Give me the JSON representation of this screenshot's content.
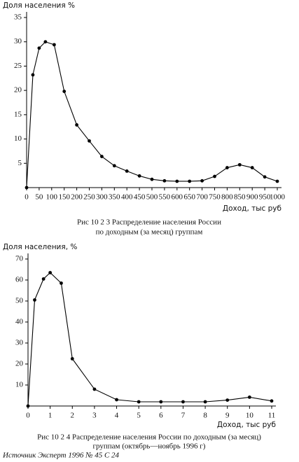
{
  "chart_data": [
    {
      "type": "line",
      "y_label": "Доля населения  %",
      "x_label": "Доход, тыс руб",
      "caption": [
        "Рис  10 2 3  Распределение населения России",
        "по доходным (за месяц) группам"
      ],
      "x": [
        0,
        25,
        50,
        75,
        110,
        150,
        200,
        250,
        300,
        350,
        400,
        450,
        500,
        550,
        600,
        650,
        700,
        750,
        800,
        850,
        900,
        950,
        1000
      ],
      "values": [
        0,
        23.2,
        28.7,
        30,
        29.4,
        19.8,
        12.9,
        9.6,
        6.4,
        4.5,
        3.4,
        2.4,
        1.7,
        1.4,
        1.3,
        1.3,
        1.4,
        2.3,
        4.1,
        4.7,
        4.1,
        2.2,
        1.3
      ],
      "color": "#000000",
      "xlim": [
        0,
        1000
      ],
      "ylim": [
        0,
        35
      ],
      "xticks": [
        0,
        50,
        100,
        150,
        200,
        250,
        300,
        350,
        400,
        450,
        500,
        550,
        600,
        650,
        700,
        750,
        800,
        850,
        900,
        950,
        1000
      ],
      "yticks": [
        5,
        10,
        15,
        20,
        25,
        30,
        35
      ]
    },
    {
      "type": "line",
      "y_label": "Доля населения, %",
      "x_label": "Доход, тыс руб",
      "caption": [
        "Рис  10 2 4  Распределение населения России по доходным (за месяц)",
        "группам (октябрь—ноябрь 1996 г)"
      ],
      "x": [
        0,
        0.3,
        0.7,
        1,
        1.5,
        2,
        3,
        4,
        5,
        6,
        7,
        8,
        9,
        10,
        11
      ],
      "values": [
        0,
        50.5,
        60.5,
        63.5,
        58.5,
        22.5,
        8,
        3,
        2,
        2,
        2,
        2,
        2.8,
        4.2,
        2.4
      ],
      "color": "#000000",
      "xlim": [
        0,
        11
      ],
      "ylim": [
        0,
        70
      ],
      "xticks": [
        0,
        1,
        2,
        3,
        4,
        5,
        6,
        7,
        8,
        9,
        10,
        11
      ],
      "yticks": [
        10,
        20,
        30,
        40,
        50,
        60,
        70
      ]
    }
  ],
  "source": "Источник  Эксперт 1996 № 45 С 24"
}
